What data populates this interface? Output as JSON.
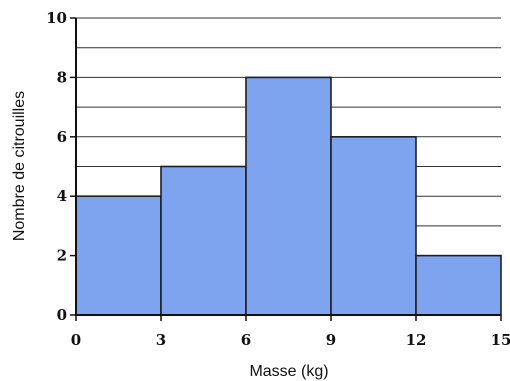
{
  "chart_data": {
    "type": "bar",
    "subtype": "histogram",
    "bins": [
      {
        "from": 0,
        "to": 3,
        "value": 4
      },
      {
        "from": 3,
        "to": 6,
        "value": 5
      },
      {
        "from": 6,
        "to": 9,
        "value": 8
      },
      {
        "from": 9,
        "to": 12,
        "value": 6
      },
      {
        "from": 12,
        "to": 15,
        "value": 2
      }
    ],
    "xticks": [
      "0",
      "3",
      "6",
      "9",
      "12",
      "15"
    ],
    "yticks": [
      "0",
      "2",
      "4",
      "6",
      "8",
      "10"
    ],
    "xlim": [
      0,
      15
    ],
    "ylim": [
      0,
      10
    ],
    "minor_grid_step": 1,
    "xlabel": "Masse (kg)",
    "ylabel": "Nombre de citrouilles",
    "grid": true,
    "colors": {
      "bar": "#7ea3ef",
      "outline": "#1f1f1f"
    }
  }
}
